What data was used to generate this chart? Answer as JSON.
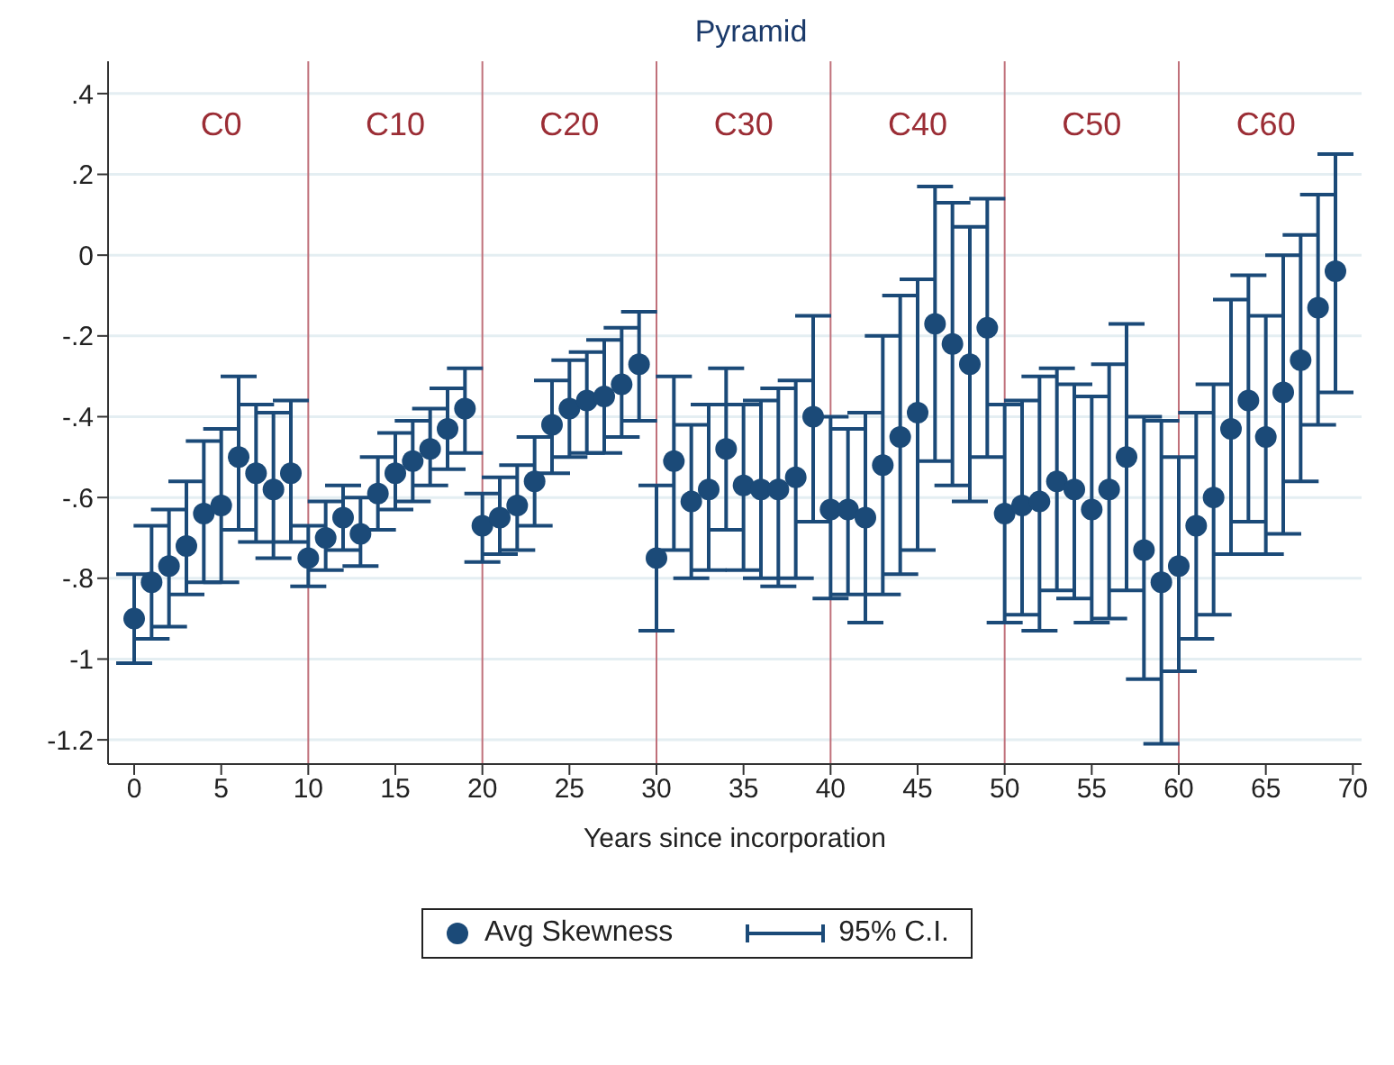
{
  "chart_data": {
    "type": "scatter",
    "title": "Pyramid",
    "xlabel": "Years since incorporation",
    "x": [
      0,
      1,
      2,
      3,
      4,
      5,
      6,
      7,
      8,
      9,
      10,
      11,
      12,
      13,
      14,
      15,
      16,
      17,
      18,
      19,
      20,
      21,
      22,
      23,
      24,
      25,
      26,
      27,
      28,
      29,
      30,
      31,
      32,
      33,
      34,
      35,
      36,
      37,
      38,
      39,
      40,
      41,
      42,
      43,
      44,
      45,
      46,
      47,
      48,
      49,
      50,
      51,
      52,
      53,
      54,
      55,
      56,
      57,
      58,
      59,
      60,
      61,
      62,
      63,
      64,
      65,
      66,
      67,
      68,
      69
    ],
    "series": [
      {
        "name": "Avg Skewness",
        "color": "#1b4a78",
        "values": [
          -0.9,
          -0.81,
          -0.77,
          -0.72,
          -0.64,
          -0.62,
          -0.5,
          -0.54,
          -0.58,
          -0.54,
          -0.75,
          -0.7,
          -0.65,
          -0.69,
          -0.59,
          -0.54,
          -0.51,
          -0.48,
          -0.43,
          -0.38,
          -0.67,
          -0.65,
          -0.62,
          -0.56,
          -0.42,
          -0.38,
          -0.36,
          -0.35,
          -0.32,
          -0.27,
          -0.75,
          -0.51,
          -0.61,
          -0.58,
          -0.48,
          -0.57,
          -0.58,
          -0.58,
          -0.55,
          -0.4,
          -0.63,
          -0.63,
          -0.65,
          -0.52,
          -0.45,
          -0.39,
          -0.17,
          -0.22,
          -0.27,
          -0.18,
          -0.64,
          -0.62,
          -0.61,
          -0.56,
          -0.58,
          -0.63,
          -0.58,
          -0.5,
          -0.73,
          -0.81,
          -0.77,
          -0.67,
          -0.6,
          -0.43,
          -0.36,
          -0.45,
          -0.34,
          -0.26,
          -0.13,
          -0.04
        ],
        "errors": [
          [
            -1.01,
            -0.79
          ],
          [
            -0.95,
            -0.67
          ],
          [
            -0.92,
            -0.63
          ],
          [
            -0.84,
            -0.56
          ],
          [
            -0.81,
            -0.46
          ],
          [
            -0.81,
            -0.43
          ],
          [
            -0.68,
            -0.3
          ],
          [
            -0.71,
            -0.37
          ],
          [
            -0.75,
            -0.39
          ],
          [
            -0.71,
            -0.36
          ],
          [
            -0.82,
            -0.67
          ],
          [
            -0.78,
            -0.61
          ],
          [
            -0.73,
            -0.57
          ],
          [
            -0.77,
            -0.6
          ],
          [
            -0.68,
            -0.5
          ],
          [
            -0.63,
            -0.44
          ],
          [
            -0.61,
            -0.41
          ],
          [
            -0.57,
            -0.38
          ],
          [
            -0.53,
            -0.33
          ],
          [
            -0.49,
            -0.28
          ],
          [
            -0.76,
            -0.59
          ],
          [
            -0.74,
            -0.55
          ],
          [
            -0.73,
            -0.52
          ],
          [
            -0.67,
            -0.45
          ],
          [
            -0.54,
            -0.31
          ],
          [
            -0.5,
            -0.26
          ],
          [
            -0.49,
            -0.24
          ],
          [
            -0.49,
            -0.21
          ],
          [
            -0.45,
            -0.18
          ],
          [
            -0.41,
            -0.14
          ],
          [
            -0.93,
            -0.57
          ],
          [
            -0.73,
            -0.3
          ],
          [
            -0.8,
            -0.42
          ],
          [
            -0.78,
            -0.37
          ],
          [
            -0.68,
            -0.28
          ],
          [
            -0.78,
            -0.37
          ],
          [
            -0.8,
            -0.36
          ],
          [
            -0.82,
            -0.33
          ],
          [
            -0.8,
            -0.31
          ],
          [
            -0.66,
            -0.15
          ],
          [
            -0.85,
            -0.4
          ],
          [
            -0.84,
            -0.43
          ],
          [
            -0.91,
            -0.39
          ],
          [
            -0.84,
            -0.2
          ],
          [
            -0.79,
            -0.1
          ],
          [
            -0.73,
            -0.06
          ],
          [
            -0.51,
            0.17
          ],
          [
            -0.57,
            0.13
          ],
          [
            -0.61,
            0.07
          ],
          [
            -0.5,
            0.14
          ],
          [
            -0.91,
            -0.37
          ],
          [
            -0.89,
            -0.36
          ],
          [
            -0.93,
            -0.3
          ],
          [
            -0.83,
            -0.28
          ],
          [
            -0.85,
            -0.32
          ],
          [
            -0.91,
            -0.35
          ],
          [
            -0.9,
            -0.27
          ],
          [
            -0.83,
            -0.17
          ],
          [
            -1.05,
            -0.4
          ],
          [
            -1.21,
            -0.41
          ],
          [
            -1.03,
            -0.5
          ],
          [
            -0.95,
            -0.39
          ],
          [
            -0.89,
            -0.32
          ],
          [
            -0.74,
            -0.11
          ],
          [
            -0.66,
            -0.05
          ],
          [
            -0.74,
            -0.15
          ],
          [
            -0.69,
            0.0
          ],
          [
            -0.56,
            0.05
          ],
          [
            -0.42,
            0.15
          ],
          [
            -0.34,
            0.25
          ]
        ]
      }
    ],
    "xlim": [
      -1.5,
      70.5
    ],
    "xticks": [
      0,
      5,
      10,
      15,
      20,
      25,
      30,
      35,
      40,
      45,
      50,
      55,
      60,
      65,
      70
    ],
    "ylim": [
      -1.26,
      0.48
    ],
    "yticks": [
      {
        "value": 0.4,
        "label": ".4"
      },
      {
        "value": 0.2,
        "label": ".2"
      },
      {
        "value": 0,
        "label": "0"
      },
      {
        "value": -0.2,
        "label": "-.2"
      },
      {
        "value": -0.4,
        "label": "-.4"
      },
      {
        "value": -0.6,
        "label": "-.6"
      },
      {
        "value": -0.8,
        "label": "-.8"
      },
      {
        "value": -1,
        "label": "-1"
      },
      {
        "value": -1.2,
        "label": "-1.2"
      }
    ],
    "grid": "y",
    "marker": "circle",
    "legend": "bottom",
    "legend_title": null,
    "ref_lines": [
      {
        "axis": "x",
        "value": 10,
        "color": "#c0707a"
      },
      {
        "axis": "x",
        "value": 20,
        "color": "#c0707a"
      },
      {
        "axis": "x",
        "value": 30,
        "color": "#c0707a"
      },
      {
        "axis": "x",
        "value": 40,
        "color": "#c0707a"
      },
      {
        "axis": "x",
        "value": 50,
        "color": "#c0707a"
      },
      {
        "axis": "x",
        "value": 60,
        "color": "#c0707a"
      }
    ],
    "annotations": [
      "C0",
      "C10",
      "C20",
      "C30",
      "C40",
      "C50",
      "C60",
      "95% C.I."
    ]
  }
}
